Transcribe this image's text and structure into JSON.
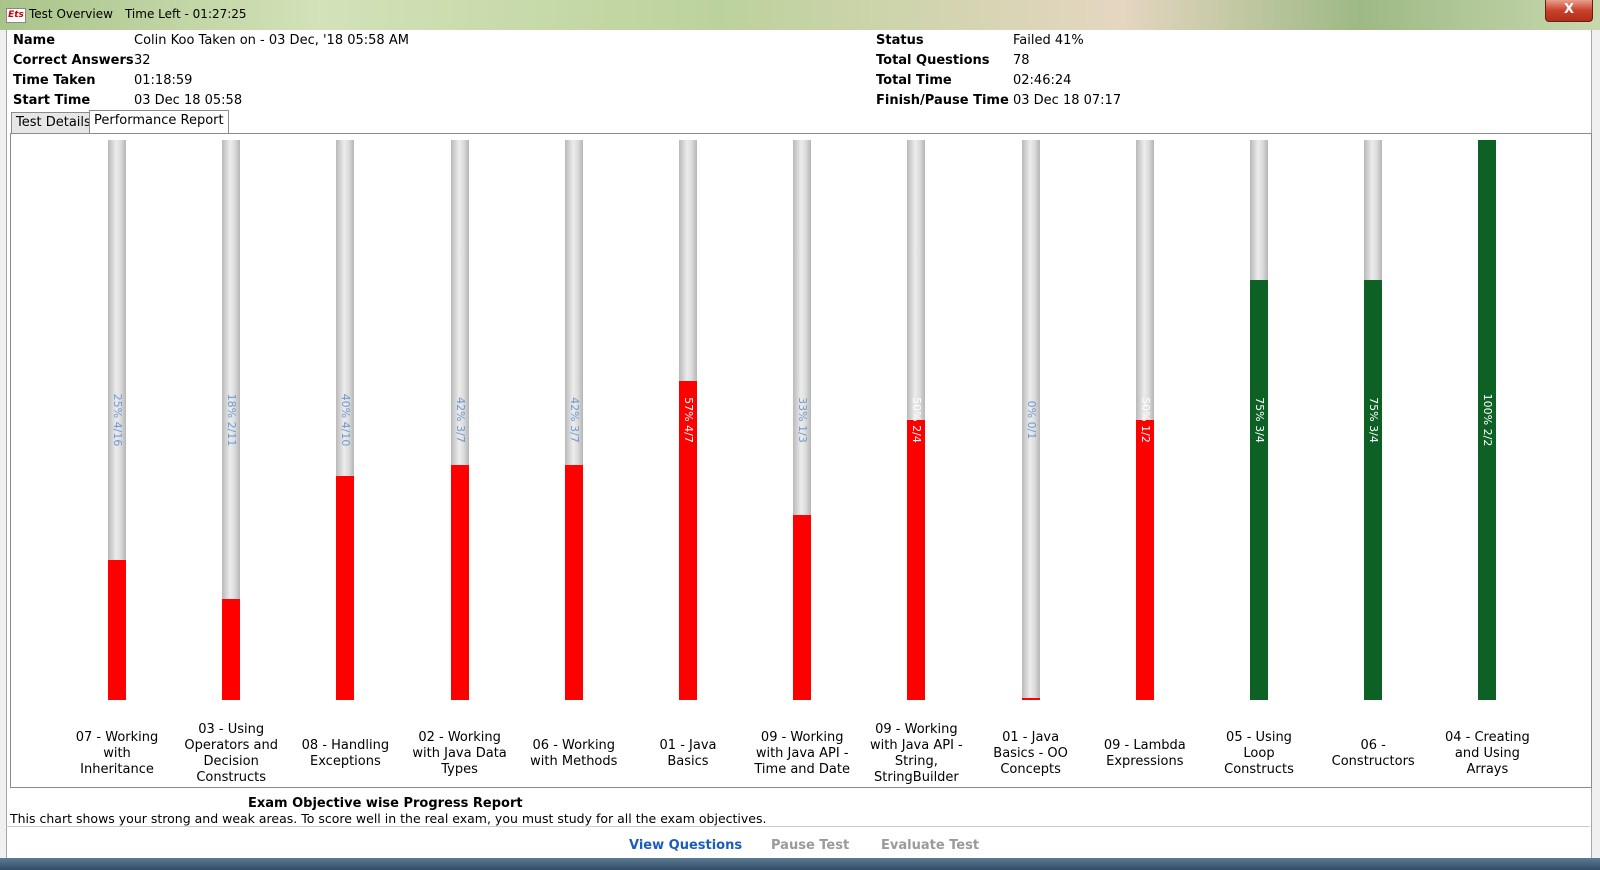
{
  "window": {
    "title": "Test Overview",
    "time_left": "Time Left - 01:27:25",
    "app_icon_text": "Ets",
    "close_label": "X"
  },
  "summary": {
    "left": [
      {
        "label": "Name",
        "value": "Colin Koo Taken on - 03 Dec, '18 05:58 AM"
      },
      {
        "label": "Correct Answers",
        "value": "32"
      },
      {
        "label": "Time Taken",
        "value": "01:18:59"
      },
      {
        "label": "Start Time",
        "value": "03 Dec 18 05:58"
      }
    ],
    "right": [
      {
        "label": "Status",
        "value": "Failed 41%"
      },
      {
        "label": "Total Questions",
        "value": "78"
      },
      {
        "label": "Total Time",
        "value": "02:46:24"
      },
      {
        "label": "Finish/Pause Time",
        "value": "03 Dec 18 07:17"
      }
    ]
  },
  "tabs": [
    {
      "label": "Test Details",
      "active": false
    },
    {
      "label": "Performance Report",
      "active": true
    }
  ],
  "colors": {
    "fail": "#ff0000",
    "pass": "#0d6125",
    "label_on_track": "#6e9ad3",
    "label_on_fill": "#ffffff"
  },
  "chart_data": {
    "type": "bar",
    "orientation": "vertical",
    "ylim": [
      0,
      100
    ],
    "categories": [
      "07 - Working with Inheritance",
      "03 - Using Operators and Decision Constructs",
      "08 - Handling Exceptions",
      "02 - Working with Java Data Types",
      "06 - Working with Methods",
      "01 - Java Basics",
      "09 - Working with Java API - Time and Date",
      "09 - Working with Java API - String, StringBuilder",
      "01 - Java Basics - OO Concepts",
      "09 - Lambda Expressions",
      "05 - Using Loop Constructs",
      "06 - Constructors",
      "04 - Creating and Using Arrays"
    ],
    "values": [
      25,
      18,
      40,
      42,
      42,
      57,
      33,
      50,
      0,
      50,
      75,
      75,
      100
    ],
    "labels": [
      "25% 4/16",
      "18% 2/11",
      "40% 4/10",
      "42% 3/7",
      "42% 3/7",
      "57% 4/7",
      "33% 1/3",
      "50% 2/4",
      "0% 0/1",
      "50% 1/2",
      "75% 3/4",
      "75% 3/4",
      "100% 2/2"
    ],
    "status": [
      "fail",
      "fail",
      "fail",
      "fail",
      "fail",
      "fail",
      "fail",
      "fail",
      "fail",
      "fail",
      "pass",
      "pass",
      "pass"
    ]
  },
  "report": {
    "title": "Exam Objective wise Progress Report",
    "description": "This chart shows your strong and weak areas. To score well in the real exam, you must study for all the exam objectives."
  },
  "actions": [
    {
      "label": "View Questions",
      "enabled": true
    },
    {
      "label": "Pause Test",
      "enabled": false
    },
    {
      "label": "Evaluate Test",
      "enabled": false
    }
  ]
}
